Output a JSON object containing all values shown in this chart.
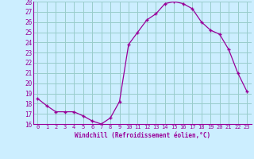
{
  "x": [
    0,
    1,
    2,
    3,
    4,
    5,
    6,
    7,
    8,
    9,
    10,
    11,
    12,
    13,
    14,
    15,
    16,
    17,
    18,
    19,
    20,
    21,
    22,
    23
  ],
  "y": [
    18.5,
    17.8,
    17.2,
    17.2,
    17.2,
    16.8,
    16.3,
    16.0,
    16.6,
    18.2,
    23.8,
    25.0,
    26.2,
    26.8,
    27.8,
    28.0,
    27.8,
    27.3,
    26.0,
    25.2,
    24.8,
    23.3,
    21.0,
    19.2
  ],
  "line_color": "#990099",
  "marker_color": "#990099",
  "bg_color": "#cceeff",
  "grid_color": "#99cccc",
  "xlabel": "Windchill (Refroidissement éolien,°C)",
  "xlabel_color": "#990099",
  "tick_color": "#990099",
  "ylim": [
    16,
    28
  ],
  "xlim": [
    -0.5,
    23.5
  ],
  "yticks": [
    16,
    17,
    18,
    19,
    20,
    21,
    22,
    23,
    24,
    25,
    26,
    27,
    28
  ],
  "xticks": [
    0,
    1,
    2,
    3,
    4,
    5,
    6,
    7,
    8,
    9,
    10,
    11,
    12,
    13,
    14,
    15,
    16,
    17,
    18,
    19,
    20,
    21,
    22,
    23
  ]
}
